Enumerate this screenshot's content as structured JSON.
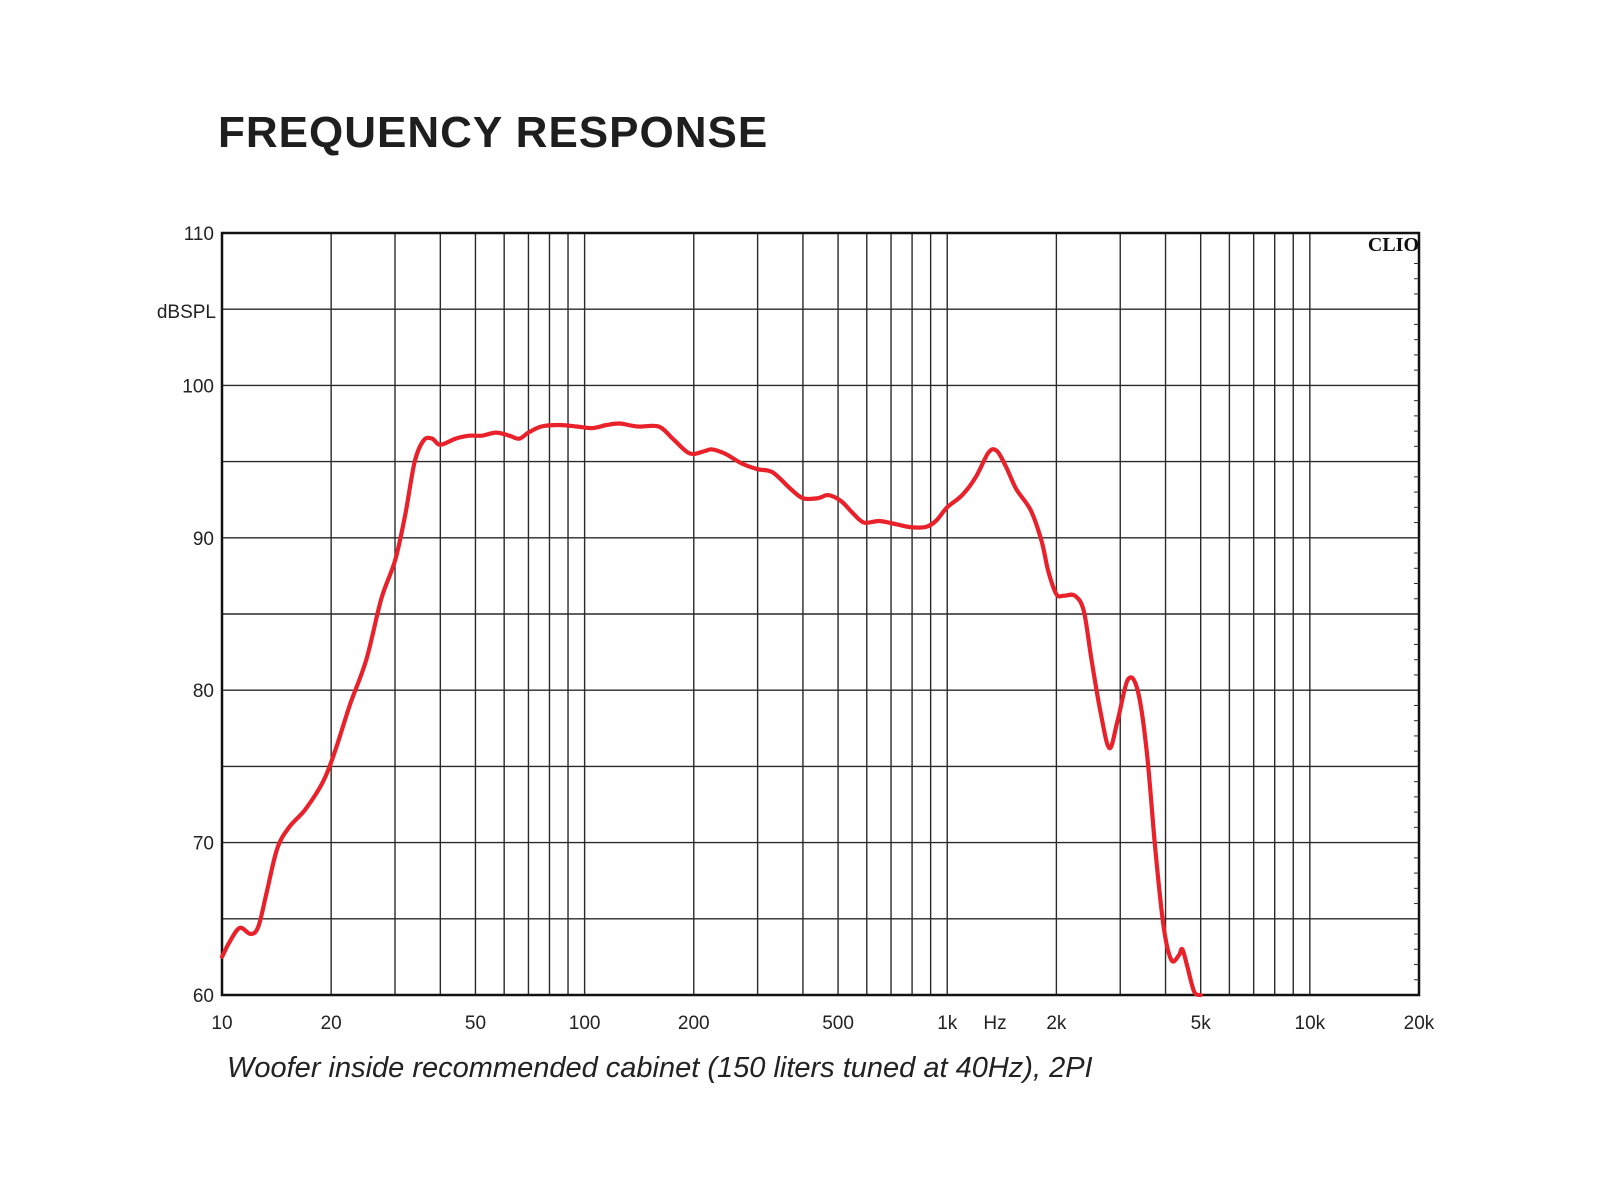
{
  "chart_data": {
    "type": "line",
    "title": "FREQUENCY RESPONSE",
    "caption": "Woofer inside recommended cabinet (150 liters tuned at 40Hz), 2PI",
    "watermark": "CLIO",
    "xlabel": "Hz",
    "ylabel": "dBSPL",
    "x_scale": "log",
    "xlim": [
      10,
      20000
    ],
    "ylim": [
      60,
      110
    ],
    "grid": true,
    "x_ticks": [
      {
        "value": 10,
        "label": "10"
      },
      {
        "value": 20,
        "label": "20"
      },
      {
        "value": 50,
        "label": "50"
      },
      {
        "value": 100,
        "label": "100"
      },
      {
        "value": 200,
        "label": "200"
      },
      {
        "value": 500,
        "label": "500"
      },
      {
        "value": 1000,
        "label": "1k"
      },
      {
        "value": 2000,
        "label": "2k"
      },
      {
        "value": 5000,
        "label": "5k"
      },
      {
        "value": 10000,
        "label": "10k"
      },
      {
        "value": 20000,
        "label": "20k"
      }
    ],
    "y_ticks": [
      {
        "value": 60,
        "label": "60"
      },
      {
        "value": 70,
        "label": "70"
      },
      {
        "value": 80,
        "label": "80"
      },
      {
        "value": 90,
        "label": "90"
      },
      {
        "value": 100,
        "label": "100"
      },
      {
        "value": 110,
        "label": "110"
      }
    ],
    "series": [
      {
        "color": "#e8212a",
        "points": [
          [
            10,
            62.5
          ],
          [
            10.5,
            63.5
          ],
          [
            11.2,
            64.4
          ],
          [
            12.0,
            64.0
          ],
          [
            12.6,
            64.5
          ],
          [
            13.3,
            66.8
          ],
          [
            14.2,
            69.6
          ],
          [
            15.3,
            71.0
          ],
          [
            17.0,
            72.2
          ],
          [
            19.0,
            74.0
          ],
          [
            20.5,
            76.0
          ],
          [
            22.5,
            79.0
          ],
          [
            25.0,
            82.0
          ],
          [
            27.5,
            86.0
          ],
          [
            30.0,
            88.5
          ],
          [
            32.0,
            91.5
          ],
          [
            34.0,
            95.0
          ],
          [
            36.0,
            96.4
          ],
          [
            38.0,
            96.5
          ],
          [
            40.0,
            96.1
          ],
          [
            44.0,
            96.5
          ],
          [
            48.0,
            96.7
          ],
          [
            52.0,
            96.7
          ],
          [
            57.0,
            96.9
          ],
          [
            62.0,
            96.7
          ],
          [
            66.0,
            96.5
          ],
          [
            70.0,
            96.9
          ],
          [
            76.0,
            97.3
          ],
          [
            85.0,
            97.4
          ],
          [
            95.0,
            97.3
          ],
          [
            105.0,
            97.2
          ],
          [
            115.0,
            97.4
          ],
          [
            125.0,
            97.5
          ],
          [
            140.0,
            97.3
          ],
          [
            160.0,
            97.3
          ],
          [
            175.0,
            96.5
          ],
          [
            190.0,
            95.7
          ],
          [
            200.0,
            95.5
          ],
          [
            215.0,
            95.7
          ],
          [
            225.0,
            95.8
          ],
          [
            245.0,
            95.5
          ],
          [
            270.0,
            94.9
          ],
          [
            300.0,
            94.5
          ],
          [
            330.0,
            94.3
          ],
          [
            370.0,
            93.2
          ],
          [
            400.0,
            92.6
          ],
          [
            440.0,
            92.6
          ],
          [
            470.0,
            92.8
          ],
          [
            510.0,
            92.4
          ],
          [
            550.0,
            91.6
          ],
          [
            590.0,
            91.0
          ],
          [
            650.0,
            91.1
          ],
          [
            720.0,
            90.9
          ],
          [
            790.0,
            90.7
          ],
          [
            870.0,
            90.7
          ],
          [
            930.0,
            91.1
          ],
          [
            1000.0,
            92.0
          ],
          [
            1100.0,
            92.8
          ],
          [
            1200.0,
            94.0
          ],
          [
            1300.0,
            95.6
          ],
          [
            1370.0,
            95.7
          ],
          [
            1450.0,
            94.7
          ],
          [
            1550.0,
            93.2
          ],
          [
            1700.0,
            91.8
          ],
          [
            1820.0,
            89.8
          ],
          [
            1900.0,
            87.8
          ],
          [
            2000.0,
            86.3
          ],
          [
            2100.0,
            86.2
          ],
          [
            2250.0,
            86.2
          ],
          [
            2380.0,
            85.2
          ],
          [
            2500.0,
            82.0
          ],
          [
            2650.0,
            78.5
          ],
          [
            2800.0,
            76.2
          ],
          [
            2950.0,
            78.0
          ],
          [
            3150.0,
            80.7
          ],
          [
            3350.0,
            80.0
          ],
          [
            3550.0,
            76.0
          ],
          [
            3750.0,
            69.5
          ],
          [
            3950.0,
            64.5
          ],
          [
            4150.0,
            62.3
          ],
          [
            4350.0,
            62.6
          ],
          [
            4450.0,
            63.0
          ],
          [
            4600.0,
            61.8
          ],
          [
            4800.0,
            60.2
          ],
          [
            5000.0,
            60.0
          ]
        ]
      }
    ]
  },
  "colors": {
    "curve": "#e8212a",
    "grid": "#2a2a2a",
    "frame": "#111111"
  }
}
